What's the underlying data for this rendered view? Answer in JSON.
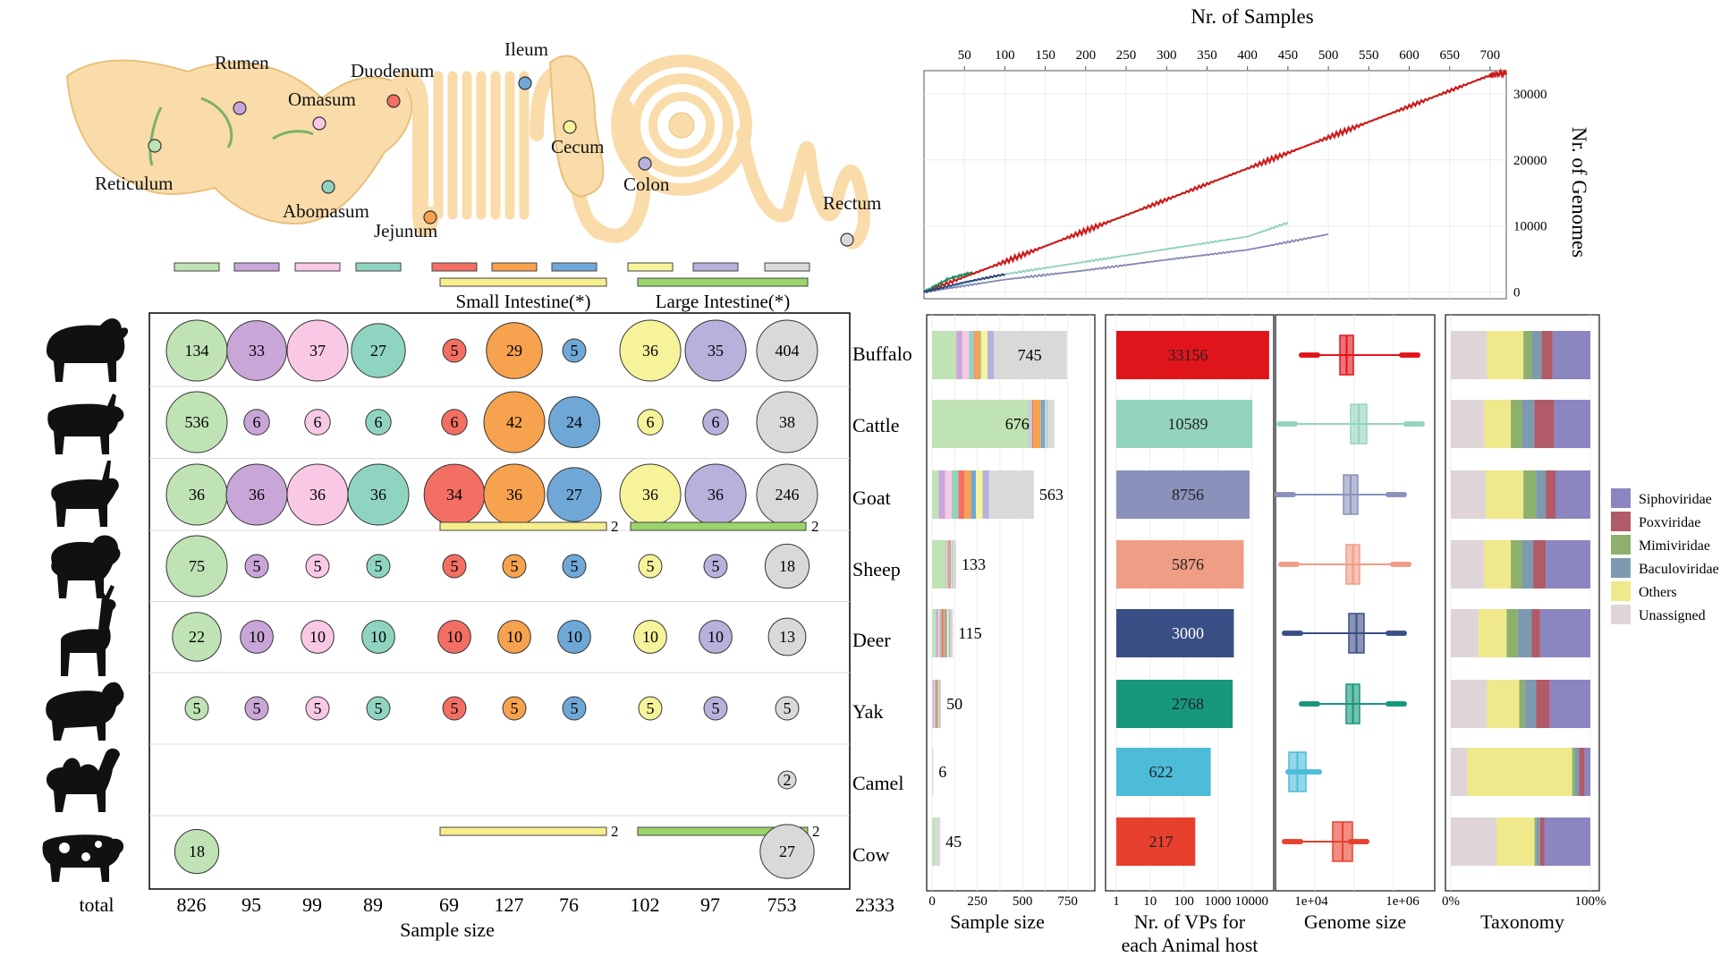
{
  "gut": {
    "sections": [
      "Rumen",
      "Omasum",
      "Duodenum",
      "Ileum",
      "Reticulum",
      "Abomasum",
      "Jejunum",
      "Cecum",
      "Colon",
      "Rectum"
    ],
    "small_intestine_label": "Small Intestine(*)",
    "large_intestine_label": "Large Intestine(*)"
  },
  "colors": {
    "Reticulum": "#bfe3b4",
    "Rumen": "#c9a6d8",
    "Omasum": "#f8c8e4",
    "Abomasum": "#8fd4c1",
    "Duodenum": "#f36f63",
    "Jejunum": "#f7a24e",
    "Ileum": "#6fa8d6",
    "Cecum": "#f6f39a",
    "Colon": "#b6b2dc",
    "Rectum": "#d9d9d9",
    "SmallIntBar": "#f6ee8c",
    "LargeIntBar": "#9bd36c"
  },
  "chart_data": [
    {
      "type": "table",
      "title": "",
      "xlabel": "Sample size",
      "columns": [
        "Reticulum",
        "Rumen",
        "Omasum",
        "Abomasum",
        "Duodenum",
        "Jejunum",
        "Ileum",
        "Cecum",
        "Colon",
        "Rectum"
      ],
      "rows": [
        {
          "host": "Buffalo",
          "values": [
            134,
            33,
            37,
            27,
            5,
            29,
            5,
            36,
            35,
            404
          ]
        },
        {
          "host": "Cattle",
          "values": [
            536,
            6,
            6,
            6,
            6,
            42,
            24,
            6,
            6,
            38
          ]
        },
        {
          "host": "Goat",
          "values": [
            36,
            36,
            36,
            36,
            34,
            36,
            27,
            36,
            36,
            246
          ],
          "small_int": 2,
          "large_int": 2
        },
        {
          "host": "Sheep",
          "values": [
            75,
            5,
            5,
            5,
            5,
            5,
            5,
            5,
            5,
            18
          ]
        },
        {
          "host": "Deer",
          "values": [
            22,
            10,
            10,
            10,
            10,
            10,
            10,
            10,
            10,
            13
          ]
        },
        {
          "host": "Yak",
          "values": [
            5,
            5,
            5,
            5,
            5,
            5,
            5,
            5,
            5,
            5
          ]
        },
        {
          "host": "Camel",
          "values": [
            null,
            null,
            null,
            null,
            null,
            null,
            null,
            null,
            null,
            2
          ],
          "small_int": 2,
          "large_int": 2
        },
        {
          "host": "Cow",
          "values": [
            18,
            null,
            null,
            null,
            null,
            null,
            null,
            null,
            null,
            27
          ]
        }
      ],
      "totals_label": "total",
      "totals": [
        826,
        95,
        99,
        89,
        69,
        127,
        76,
        102,
        97,
        753
      ],
      "grand_total": 2333
    },
    {
      "type": "line",
      "title": "Nr. of Samples",
      "ylabel": "Nr. of Genomes",
      "x_ticks": [
        50,
        100,
        150,
        200,
        250,
        300,
        350,
        400,
        450,
        500,
        550,
        600,
        650,
        700
      ],
      "y_ticks": [
        0,
        10000,
        20000,
        30000
      ],
      "xlim": [
        0,
        720
      ],
      "ylim": [
        -1000,
        33500
      ],
      "series": [
        {
          "color": "#cc1a1a",
          "points": [
            [
              0,
              0
            ],
            [
              100,
              4600
            ],
            [
              200,
              9300
            ],
            [
              300,
              14000
            ],
            [
              400,
              18700
            ],
            [
              500,
              23400
            ],
            [
              600,
              28100
            ],
            [
              700,
              32800
            ],
            [
              720,
              33150
            ]
          ]
        },
        {
          "color": "#8fd0c0",
          "points": [
            [
              0,
              0
            ],
            [
              100,
              2700
            ],
            [
              200,
              4600
            ],
            [
              300,
              6500
            ],
            [
              400,
              8400
            ],
            [
              450,
              10500
            ]
          ]
        },
        {
          "color": "#8388b2",
          "points": [
            [
              0,
              0
            ],
            [
              100,
              1900
            ],
            [
              200,
              3300
            ],
            [
              300,
              4900
            ],
            [
              400,
              6400
            ],
            [
              500,
              8750
            ]
          ]
        },
        {
          "color": "#1f8a60",
          "points": [
            [
              0,
              0
            ],
            [
              30,
              2000
            ],
            [
              60,
              3000
            ]
          ]
        },
        {
          "color": "#2b3f7a",
          "points": [
            [
              0,
              0
            ],
            [
              50,
              1500
            ],
            [
              100,
              2700
            ]
          ]
        }
      ]
    },
    {
      "type": "bar",
      "xlabel": "Sample size",
      "categories": [
        "Buffalo",
        "Cattle",
        "Goat",
        "Sheep",
        "Deer",
        "Yak",
        "Camel",
        "Cow"
      ],
      "values": [
        745,
        676,
        563,
        133,
        115,
        50,
        6,
        45
      ],
      "x_ticks": [
        0,
        250,
        500,
        750
      ],
      "xlim": [
        -30,
        900
      ]
    },
    {
      "type": "bar",
      "xlabel": "Nr. of VPs for each Animal host",
      "categories": [
        "Buffalo",
        "Cattle",
        "Goat",
        "Sheep",
        "Deer",
        "Yak",
        "Camel",
        "Cow"
      ],
      "values": [
        33156,
        10589,
        8756,
        5876,
        3000,
        2768,
        622,
        217
      ],
      "colors": [
        "#e0141b",
        "#95d3c1",
        "#8a91ba",
        "#f09d85",
        "#3a4e86",
        "#17977c",
        "#4cbcd8",
        "#e8402e"
      ],
      "x_ticks": [
        "1",
        "10",
        "100",
        "1000",
        "10000"
      ],
      "scale": "log"
    },
    {
      "type": "box",
      "xlabel": "Genome size",
      "categories": [
        "Buffalo",
        "Cattle",
        "Goat",
        "Sheep",
        "Deer",
        "Yak",
        "Camel",
        "Cow"
      ],
      "x_ticks": [
        "1e+04",
        "1e+06"
      ],
      "colors": [
        "#e0141b",
        "#95d3c1",
        "#8a91ba",
        "#f09d85",
        "#3a4e86",
        "#17977c",
        "#4cbcd8",
        "#e8402e"
      ]
    },
    {
      "type": "bar",
      "xlabel": "Taxonomy",
      "x_ticks": [
        "0%",
        "100%"
      ],
      "stacked": true,
      "legend_position": "right",
      "legend": [
        "Siphoviridae",
        "Poxviridae",
        "Mimiviridae",
        "Baculoviridae",
        "Others",
        "Unassigned"
      ],
      "legend_colors": [
        "#8b86c0",
        "#b15a68",
        "#8db06d",
        "#7d9ab0",
        "#f0e98b",
        "#dfd5d6"
      ],
      "categories": [
        "Buffalo",
        "Cattle",
        "Goat",
        "Sheep",
        "Deer",
        "Yak",
        "Camel",
        "Cow"
      ],
      "series": [
        {
          "name": "Unassigned",
          "values": [
            26,
            24,
            25,
            24,
            20,
            26,
            12,
            33
          ]
        },
        {
          "name": "Others",
          "values": [
            26,
            19,
            27,
            19,
            20,
            23,
            75,
            27
          ]
        },
        {
          "name": "Mimiviridae",
          "values": [
            6,
            8,
            9,
            8,
            8,
            4,
            2,
            1
          ]
        },
        {
          "name": "Baculoviridae",
          "values": [
            7,
            9,
            7,
            8,
            10,
            8,
            3,
            3
          ]
        },
        {
          "name": "Poxviridae",
          "values": [
            8,
            14,
            7,
            9,
            6,
            10,
            4,
            3
          ]
        },
        {
          "name": "Siphoviridae",
          "values": [
            27,
            26,
            25,
            32,
            36,
            29,
            4,
            33
          ]
        }
      ]
    }
  ]
}
